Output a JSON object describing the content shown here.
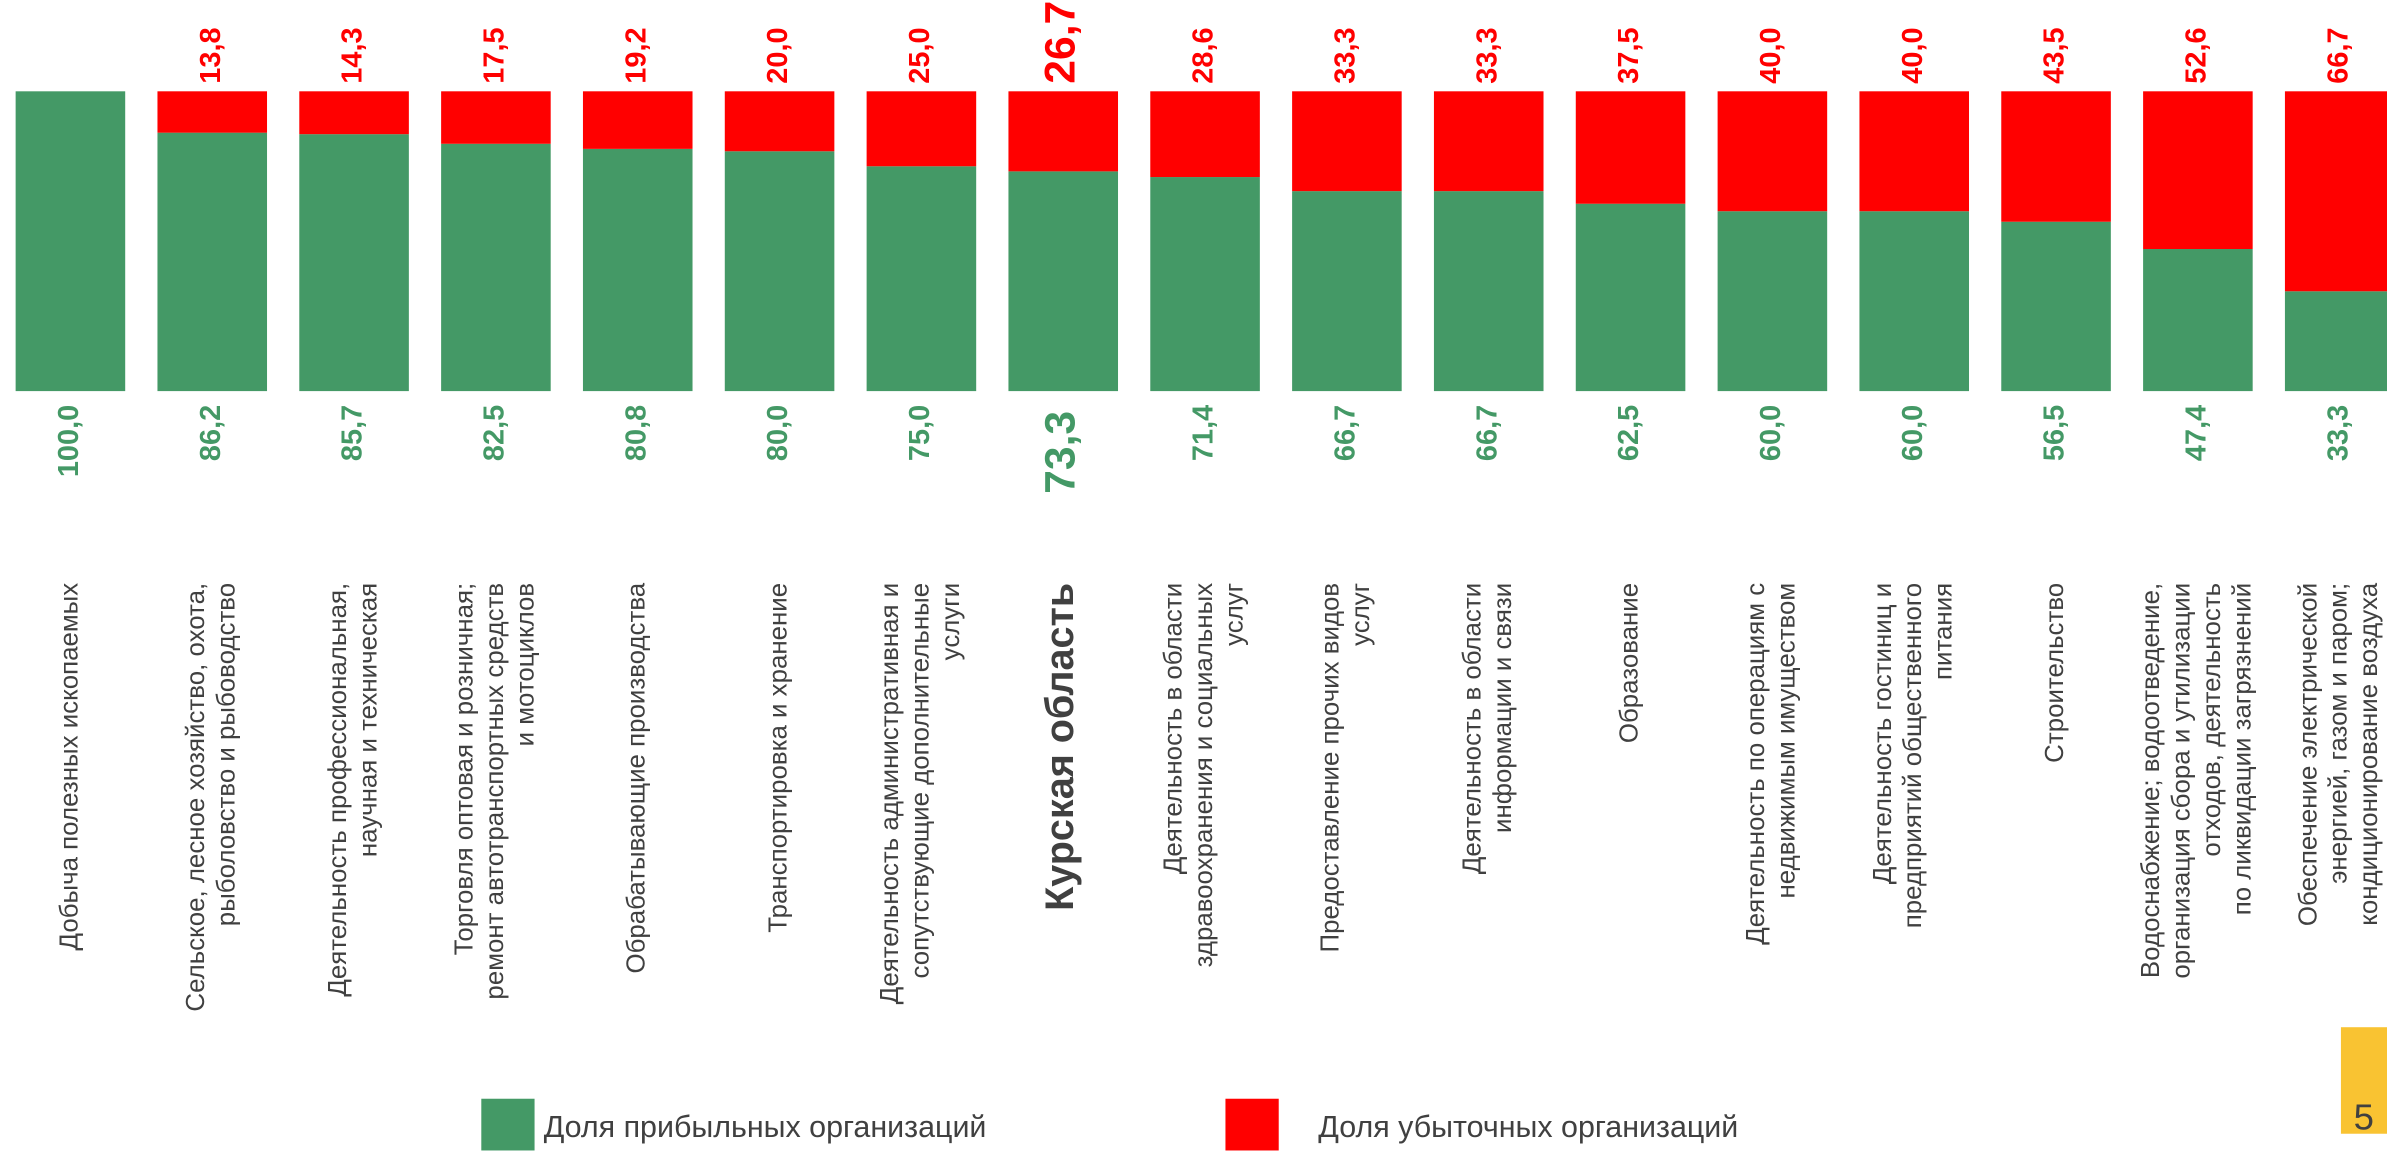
{
  "chart_data": {
    "type": "stacked_bar",
    "categories": [
      [
        "Добыча полезных ископаемых"
      ],
      [
        "Сельское, лесное хозяйство, охота,",
        "рыболовство и рыбоводство"
      ],
      [
        "Деятельность профессиональная,",
        "научная и техническая"
      ],
      [
        "Торговля оптовая и розничная;",
        "ремонт автотранспортных средств",
        "и мотоциклов"
      ],
      [
        "Обрабатывающие производства"
      ],
      [
        "Транспортировка и хранение"
      ],
      [
        "Деятельность административная и",
        "сопутствующие дополнительные",
        "услуги"
      ],
      [
        "Курская область"
      ],
      [
        "Деятельность в области",
        "здравоохранения и социальных",
        "услуг"
      ],
      [
        "Предоставление прочих видов",
        "услуг"
      ],
      [
        "Деятельность в области",
        "информации и связи"
      ],
      [
        "Образование"
      ],
      [
        "Деятельность по операциям с",
        "недвижимым имуществом"
      ],
      [
        "Деятельность гостиниц и",
        "предприятий общественного",
        "питания"
      ],
      [
        "Строительство"
      ],
      [
        "Водоснабжение; водоотведение,",
        "организация сбора и утилизации",
        "отходов, деятельность",
        "по ликвидации загрязнений"
      ],
      [
        "Обеспечение электрической",
        "энергией, газом и паром;",
        "кондиционирование воздуха"
      ]
    ],
    "highlight": 7,
    "series": [
      {
        "name": "Доля прибыльных организаций",
        "color": "#449966",
        "values": [
          100,
          86.2,
          85.7,
          82.5,
          80.8,
          80.0,
          75.0,
          73.3,
          71.4,
          66.7,
          66.7,
          62.5,
          60.0,
          60.0,
          56.5,
          47.4,
          33.3
        ],
        "value_labels": [
          "100,0",
          "86,2",
          "85,7",
          "82,5",
          "80,8",
          "80,0",
          "75,0",
          "73,3",
          "71,4",
          "66,7",
          "66,7",
          "62,5",
          "60,0",
          "60,0",
          "56,5",
          "47,4",
          "33,3"
        ]
      },
      {
        "name": "Доля убыточных организаций",
        "color": "#ff0000",
        "values": [
          0,
          13.8,
          14.3,
          17.5,
          19.2,
          20.0,
          25.0,
          26.7,
          28.6,
          33.3,
          33.3,
          37.5,
          40.0,
          40.0,
          43.5,
          52.6,
          66.7
        ],
        "value_labels": [
          null,
          "13,8",
          "14,3",
          "17,5",
          "19,2",
          "20,0",
          "25,0",
          "26,7",
          "28,6",
          "33,3",
          "33,3",
          "37,5",
          "40,0",
          "40,0",
          "43,5",
          "52,6",
          "66,7"
        ]
      }
    ],
    "ylim": [
      0,
      100
    ]
  },
  "page_number": "5"
}
